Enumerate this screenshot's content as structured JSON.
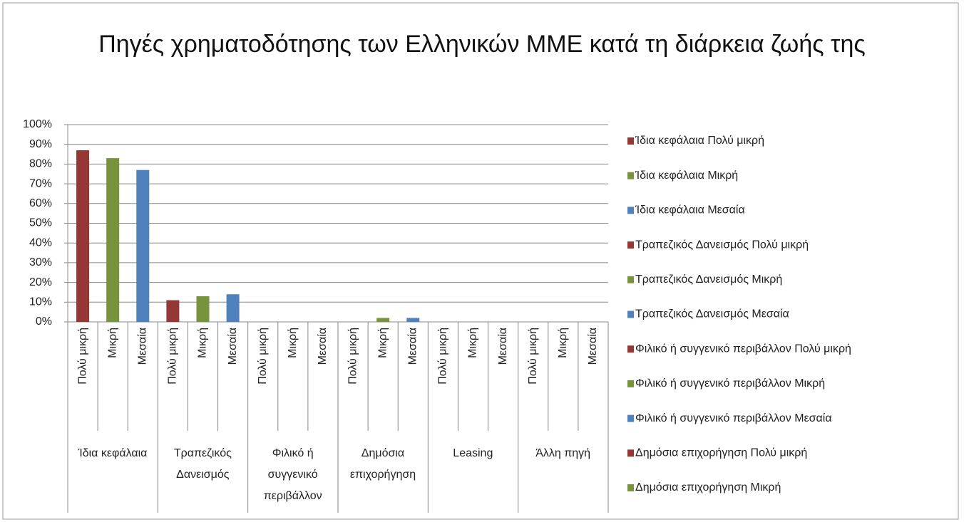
{
  "chart_data": {
    "type": "bar",
    "title": "Πηγές χρηματοδότησης των Ελληνικών ΜΜΕ κατά τη διάρκεια ζωής της",
    "groups": [
      "Ίδια κεφάλαια",
      "Τραπεζικός Δανεισμός",
      "Φιλικό ή συγγενικό περιβάλλον",
      "Δημόσια επιχορήγηση",
      "Leasing",
      "Άλλη πηγή"
    ],
    "categories": [
      "Πολύ μικρή",
      "Μικρή",
      "Μεσαία",
      "Πολύ μικρή",
      "Μικρή",
      "Μεσαία",
      "Πολύ μικρή",
      "Μικρή",
      "Μεσαία",
      "Πολύ μικρή",
      "Μικρή",
      "Μεσαία",
      "Πολύ μικρή",
      "Μικρή",
      "Μεσαία",
      "Πολύ μικρή",
      "Μικρή",
      "Μεσαία"
    ],
    "values": [
      87,
      83,
      77,
      11,
      13,
      14,
      0,
      0,
      0,
      0,
      2,
      2,
      0,
      0,
      0,
      0,
      0,
      0
    ],
    "colors": [
      "#953735",
      "#77933c",
      "#4f81bd"
    ],
    "ylim": [
      0,
      100
    ],
    "yticks": [
      {
        "value": 0,
        "label": "0%"
      },
      {
        "value": 10,
        "label": "10%"
      },
      {
        "value": 20,
        "label": "20%"
      },
      {
        "value": 30,
        "label": "30%"
      },
      {
        "value": 40,
        "label": "40%"
      },
      {
        "value": 50,
        "label": "50%"
      },
      {
        "value": 60,
        "label": "60%"
      },
      {
        "value": 70,
        "label": "70%"
      },
      {
        "value": 80,
        "label": "80%"
      },
      {
        "value": 90,
        "label": "90%"
      },
      {
        "value": 100,
        "label": "100%"
      }
    ],
    "grid": true,
    "legend_position": "right",
    "legend": [
      {
        "name": "Ίδια κεφάλαια Πολύ μικρή",
        "color": "#953735"
      },
      {
        "name": "Ίδια κεφάλαια Μικρή",
        "color": "#77933c"
      },
      {
        "name": "Ίδια κεφάλαια Μεσαία",
        "color": "#4f81bd"
      },
      {
        "name": "Τραπεζικός Δανεισμός Πολύ μικρή",
        "color": "#953735"
      },
      {
        "name": "Τραπεζικός Δανεισμός Μικρή",
        "color": "#77933c"
      },
      {
        "name": "Τραπεζικός Δανεισμός Μεσαία",
        "color": "#4f81bd"
      },
      {
        "name": "Φιλικό ή συγγενικό περιβάλλον Πολύ μικρή",
        "color": "#953735"
      },
      {
        "name": "Φιλικό ή συγγενικό περιβάλλον Μικρή",
        "color": "#77933c"
      },
      {
        "name": "Φιλικό ή συγγενικό περιβάλλον Μεσαία",
        "color": "#4f81bd"
      },
      {
        "name": "Δημόσια επιχορήγηση Πολύ μικρή",
        "color": "#953735"
      },
      {
        "name": "Δημόσια επιχορήγηση Μικρή",
        "color": "#77933c"
      }
    ]
  }
}
